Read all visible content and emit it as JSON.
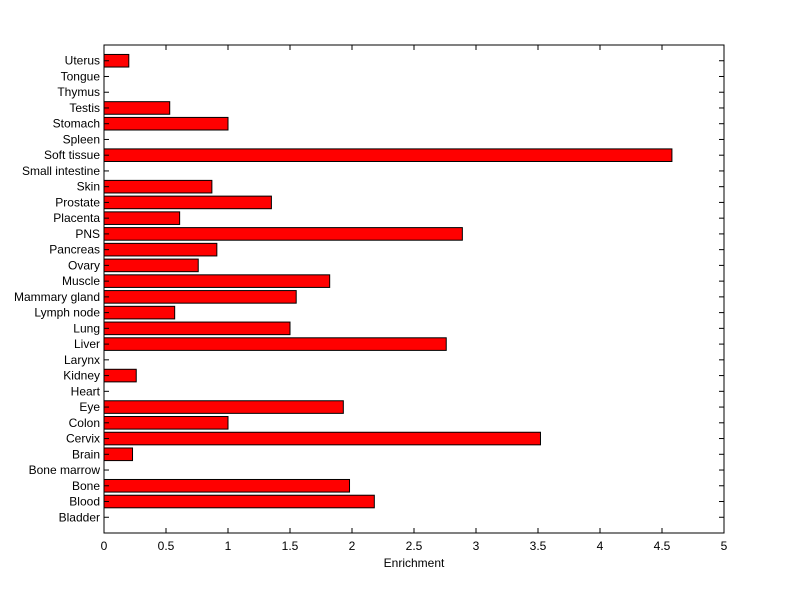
{
  "chart_data": {
    "type": "bar",
    "orientation": "horizontal",
    "categories": [
      "Bladder",
      "Blood",
      "Bone",
      "Bone marrow",
      "Brain",
      "Cervix",
      "Colon",
      "Eye",
      "Heart",
      "Kidney",
      "Larynx",
      "Liver",
      "Lung",
      "Lymph node",
      "Mammary gland",
      "Muscle",
      "Ovary",
      "Pancreas",
      "PNS",
      "Placenta",
      "Prostate",
      "Skin",
      "Small intestine",
      "Soft tissue",
      "Spleen",
      "Stomach",
      "Testis",
      "Thymus",
      "Tongue",
      "Uterus"
    ],
    "values": [
      0,
      2.18,
      1.98,
      0,
      0.23,
      3.52,
      1.0,
      1.93,
      0,
      0.26,
      0,
      2.76,
      1.5,
      0.57,
      1.55,
      1.82,
      0.76,
      0.91,
      2.89,
      0.61,
      1.35,
      0.87,
      0,
      4.58,
      0,
      1.0,
      0.53,
      0,
      0,
      0.2
    ],
    "title": "",
    "xlabel": "Enrichment",
    "ylabel": "",
    "xlim": [
      0,
      5
    ],
    "xticks": [
      "0",
      "0.5",
      "1",
      "1.5",
      "2",
      "2.5",
      "3",
      "3.5",
      "4",
      "4.5",
      "5"
    ],
    "bar_color": "#ff0000",
    "bar_edge_color": "#000000",
    "grid": false,
    "legend": "none"
  }
}
